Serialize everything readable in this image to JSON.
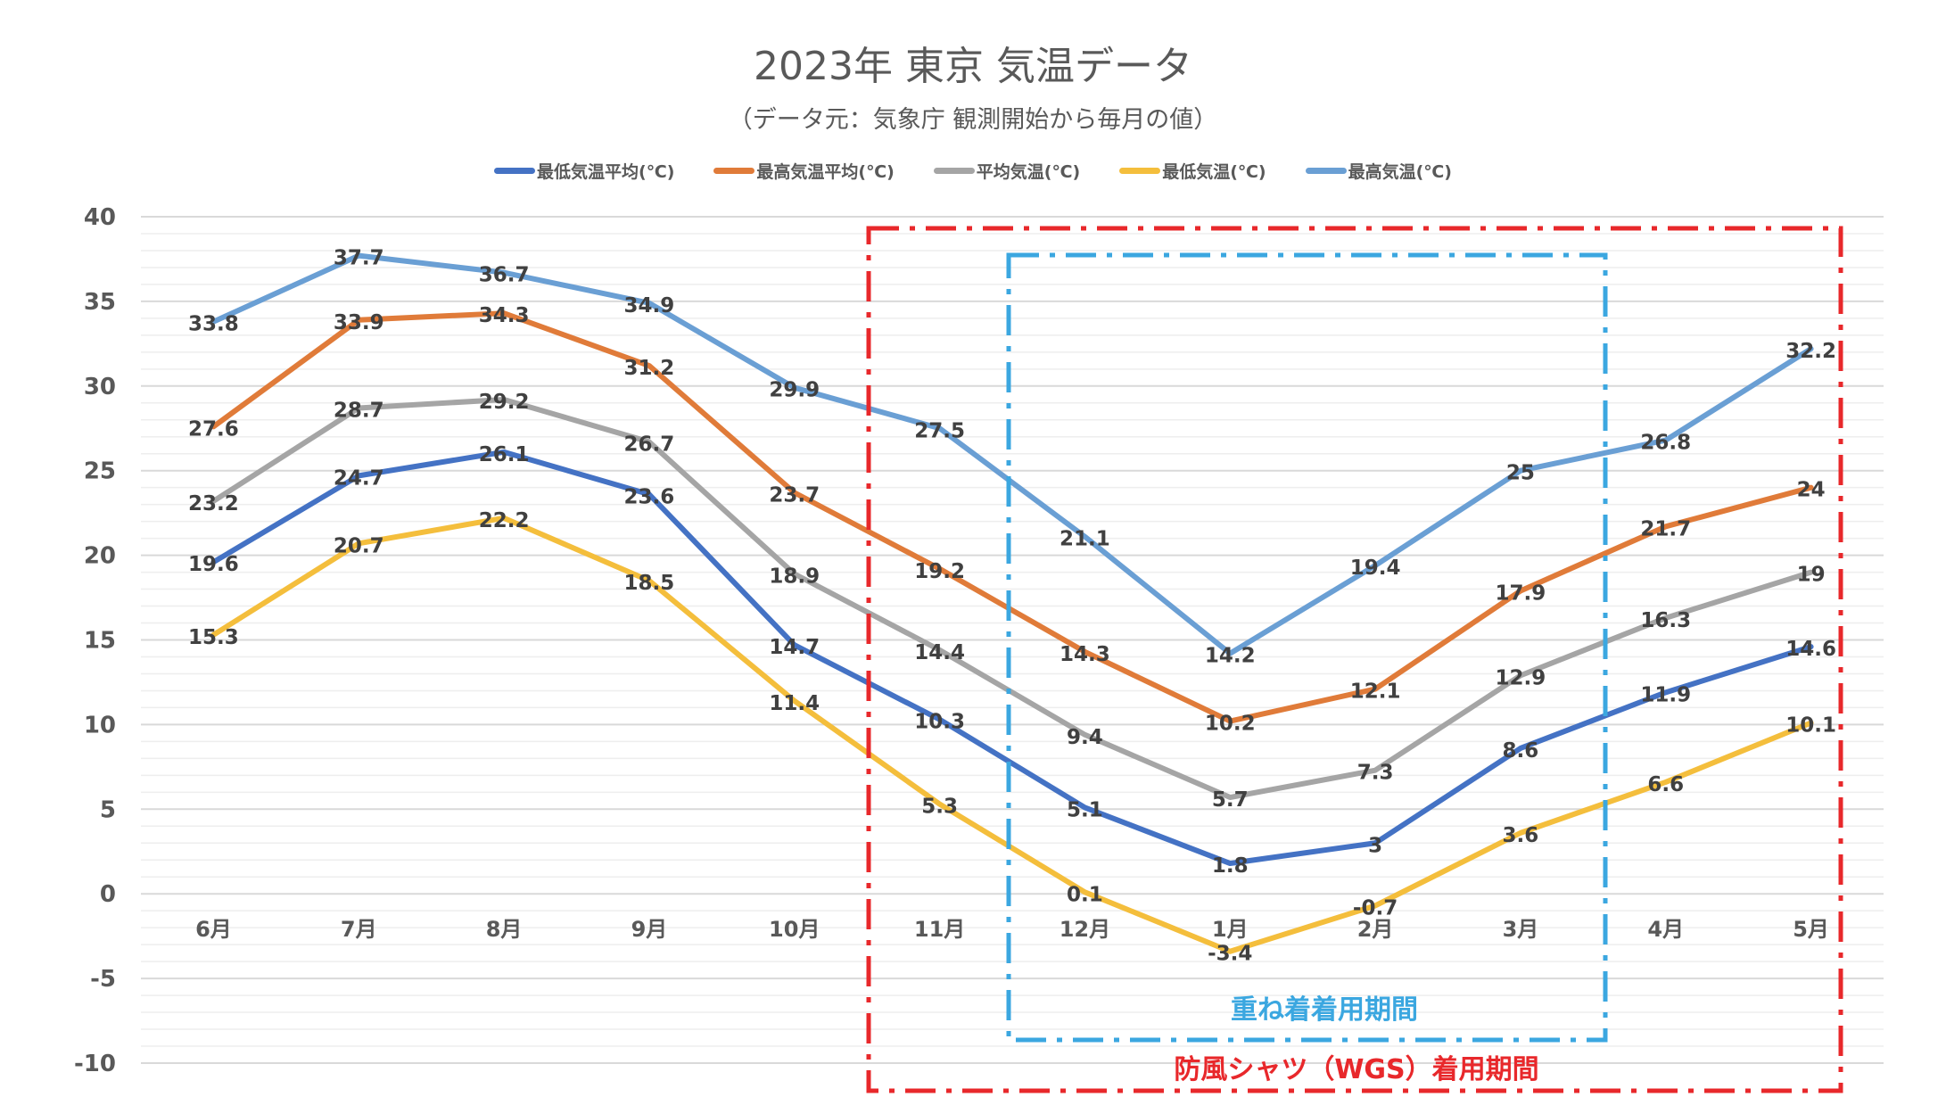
{
  "chart_data": {
    "type": "line",
    "title": "2023年 東京 気温データ",
    "subtitle": "（データ元：気象庁 観測開始から毎月の値）",
    "categories": [
      "6月",
      "7月",
      "8月",
      "9月",
      "10月",
      "11月",
      "12月",
      "1月",
      "2月",
      "3月",
      "4月",
      "5月"
    ],
    "ylim": [
      -10,
      40
    ],
    "yticks": [
      40,
      35,
      30,
      25,
      20,
      15,
      10,
      5,
      0,
      -5,
      -10
    ],
    "grid": true,
    "legend_position": "top",
    "series": [
      {
        "name": "最低気温平均(℃)",
        "color": "#4472C4",
        "values": [
          19.6,
          24.7,
          26.1,
          23.6,
          14.7,
          10.3,
          5.1,
          1.8,
          3,
          8.6,
          11.9,
          14.6
        ]
      },
      {
        "name": "最高気温平均(℃)",
        "color": "#E07B39",
        "values": [
          27.6,
          33.9,
          34.3,
          31.2,
          23.7,
          19.2,
          14.3,
          10.2,
          12.1,
          17.9,
          21.7,
          24
        ]
      },
      {
        "name": "平均気温(℃)",
        "color": "#A5A5A5",
        "values": [
          23.2,
          28.7,
          29.2,
          26.7,
          18.9,
          14.4,
          9.4,
          5.7,
          7.3,
          12.9,
          16.3,
          19
        ]
      },
      {
        "name": "最低気温(℃)",
        "color": "#F4BE3C",
        "values": [
          15.3,
          20.7,
          22.2,
          18.5,
          11.4,
          5.3,
          0.1,
          -3.4,
          -0.7,
          3.6,
          6.6,
          10.1
        ]
      },
      {
        "name": "最高気温(℃)",
        "color": "#6A9FD4",
        "values": [
          33.8,
          37.7,
          36.7,
          34.9,
          29.9,
          27.5,
          21.1,
          14.2,
          19.4,
          25,
          26.8,
          32.2
        ]
      }
    ],
    "annotations": [
      {
        "text": "重ね着着用期間",
        "color": "#3BA7E0",
        "from": "12月",
        "to": "3月"
      },
      {
        "text": "防風シャツ（WGS）着用期間",
        "color": "#E8282B",
        "from": "11月",
        "to": "5月"
      }
    ]
  }
}
